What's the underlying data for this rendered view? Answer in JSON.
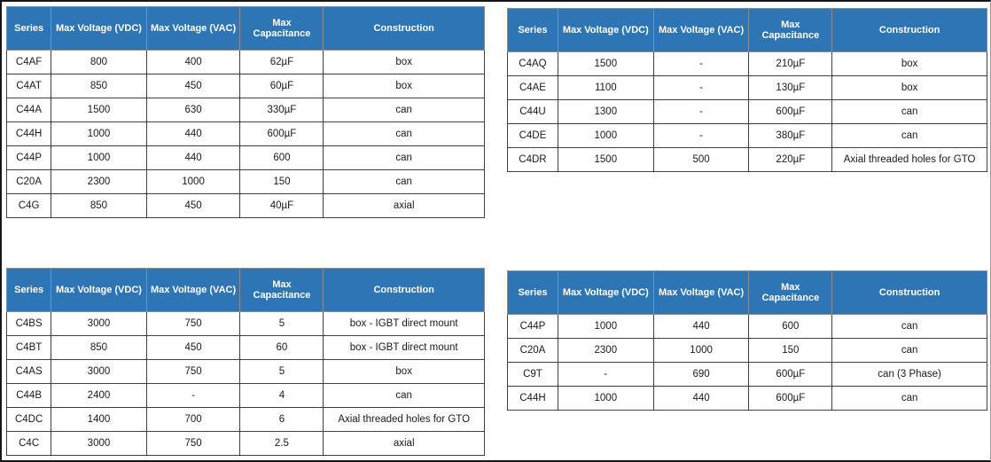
{
  "columns": [
    "Series",
    "Max Voltage (VDC)",
    "Max Voltage (VAC)",
    "Max Capacitance",
    "Construction"
  ],
  "theme": {
    "header_bg": "#2e75b6",
    "header_text_color": "#ffffff",
    "body_border_color": "#404040",
    "header_border_color": "#8c8c8c"
  },
  "tables": [
    {
      "name": "top-left",
      "rows": [
        [
          "C4AF",
          "800",
          "400",
          "62µF",
          "box"
        ],
        [
          "C4AT",
          "850",
          "450",
          "60µF",
          "box"
        ],
        [
          "C44A",
          "1500",
          "630",
          "330µF",
          "can"
        ],
        [
          "C44H",
          "1000",
          "440",
          "600µF",
          "can"
        ],
        [
          "C44P",
          "1000",
          "440",
          "600",
          "can"
        ],
        [
          "C20A",
          "2300",
          "1000",
          "150",
          "can"
        ],
        [
          "C4G",
          "850",
          "450",
          "40µF",
          "axial"
        ]
      ]
    },
    {
      "name": "top-right",
      "rows": [
        [
          "C4AQ",
          "1500",
          "-",
          "210µF",
          "box"
        ],
        [
          "C4AE",
          "1100",
          "-",
          "130µF",
          "box"
        ],
        [
          "C44U",
          "1300",
          "-",
          "600µF",
          "can"
        ],
        [
          "C4DE",
          "1000",
          "-",
          "380µF",
          "can"
        ],
        [
          "C4DR",
          "1500",
          "500",
          "220µF",
          "Axial threaded holes for GTO"
        ]
      ]
    },
    {
      "name": "bottom-left",
      "rows": [
        [
          "C4BS",
          "3000",
          "750",
          "5",
          "box - IGBT direct mount"
        ],
        [
          "C4BT",
          "850",
          "450",
          "60",
          "box - IGBT direct mount"
        ],
        [
          "C4AS",
          "3000",
          "750",
          "5",
          "box"
        ],
        [
          "C44B",
          "2400",
          "-",
          "4",
          "can"
        ],
        [
          "C4DC",
          "1400",
          "700",
          "6",
          "Axial threaded holes for GTO"
        ],
        [
          "C4C",
          "3000",
          "750",
          "2.5",
          "axial"
        ]
      ]
    },
    {
      "name": "bottom-right",
      "rows": [
        [
          "C44P",
          "1000",
          "440",
          "600",
          "can"
        ],
        [
          "C20A",
          "2300",
          "1000",
          "150",
          "can"
        ],
        [
          "C9T",
          "-",
          "690",
          "600µF",
          "can (3 Phase)"
        ],
        [
          "C44H",
          "1000",
          "440",
          "600µF",
          "can"
        ]
      ]
    }
  ]
}
